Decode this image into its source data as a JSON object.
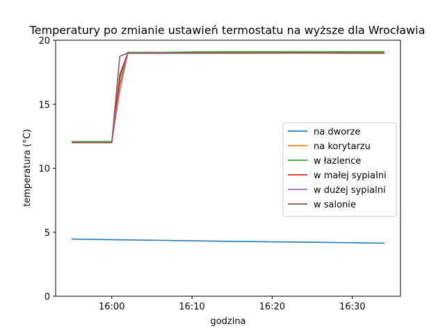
{
  "chart_data": {
    "type": "line",
    "title": "Temperatury po zmianie ustawień termostatu na wyższe dla Wrocławia",
    "xlabel": "godzina",
    "ylabel": "temperatura (°C)",
    "xlim": [
      "15:53",
      "16:36"
    ],
    "ylim": [
      0,
      20
    ],
    "xticks": [
      "16:00",
      "16:10",
      "16:20",
      "16:30"
    ],
    "yticks": [
      0,
      5,
      10,
      15,
      20
    ],
    "grid": false,
    "legend_position": "center-right",
    "x_points": [
      "15:55",
      "16:00",
      "16:01",
      "16:02",
      "16:06",
      "16:10",
      "16:16",
      "16:20",
      "16:26",
      "16:30",
      "16:34"
    ],
    "series": [
      {
        "name": "na dworze",
        "color": "#1f77b4",
        "values": [
          4.47,
          4.42,
          4.41,
          4.4,
          4.37,
          4.33,
          4.28,
          4.25,
          4.21,
          4.18,
          4.15
        ]
      },
      {
        "name": "na korytarzu",
        "color": "#ff7f0e",
        "values": [
          12.05,
          12.05,
          16.0,
          19.0,
          19.0,
          19.03,
          19.05,
          19.05,
          19.05,
          19.05,
          19.05
        ]
      },
      {
        "name": "w łazience",
        "color": "#2ca02c",
        "values": [
          12.08,
          12.08,
          17.0,
          19.05,
          19.05,
          19.08,
          19.1,
          19.1,
          19.1,
          19.1,
          19.1
        ]
      },
      {
        "name": "w małej sypialni",
        "color": "#d62728",
        "values": [
          12.02,
          12.0,
          17.3,
          19.0,
          18.98,
          19.0,
          18.98,
          19.0,
          19.0,
          18.98,
          18.98
        ]
      },
      {
        "name": "w dużej sypialni",
        "color": "#9467bd",
        "values": [
          12.0,
          12.0,
          16.5,
          18.98,
          18.98,
          18.98,
          18.99,
          19.0,
          19.0,
          19.0,
          18.99
        ]
      },
      {
        "name": "w salonie",
        "color": "#8c564b",
        "values": [
          12.0,
          12.0,
          18.75,
          19.0,
          19.02,
          19.0,
          19.0,
          19.0,
          19.02,
          19.0,
          19.0
        ]
      }
    ]
  }
}
